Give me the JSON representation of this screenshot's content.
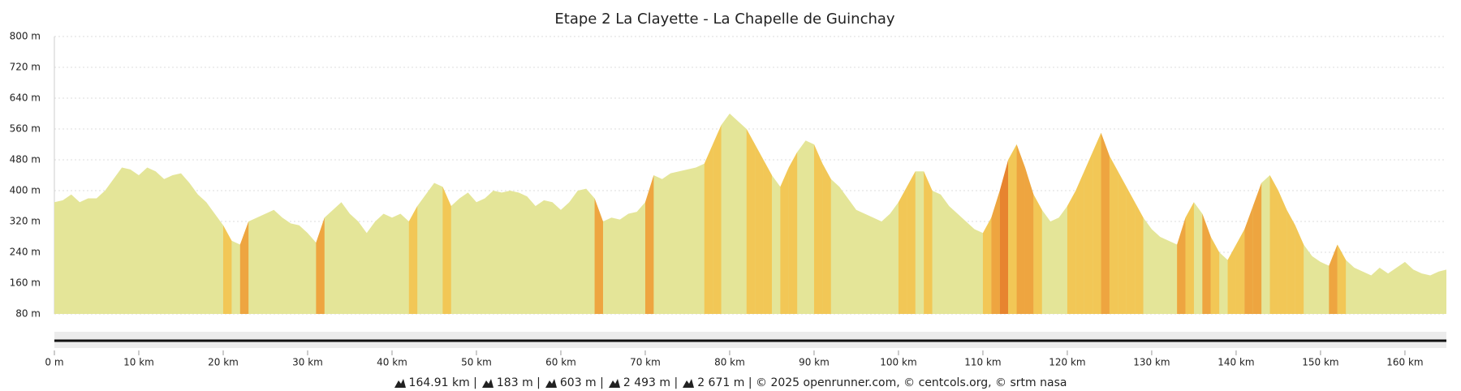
{
  "chart_data": {
    "type": "area",
    "title": "Etape 2 La Clayette - La Chapelle de Guinchay",
    "x": [
      0,
      1,
      2,
      3,
      4,
      5,
      6,
      7,
      8,
      9,
      10,
      11,
      12,
      13,
      14,
      15,
      16,
      17,
      18,
      19,
      20,
      21,
      22,
      23,
      24,
      25,
      26,
      27,
      28,
      29,
      30,
      31,
      32,
      33,
      34,
      35,
      36,
      37,
      38,
      39,
      40,
      41,
      42,
      43,
      44,
      45,
      46,
      47,
      48,
      49,
      50,
      51,
      52,
      53,
      54,
      55,
      56,
      57,
      58,
      59,
      60,
      61,
      62,
      63,
      64,
      65,
      66,
      67,
      68,
      69,
      70,
      71,
      72,
      73,
      74,
      75,
      76,
      77,
      78,
      79,
      80,
      81,
      82,
      83,
      84,
      85,
      86,
      87,
      88,
      89,
      90,
      91,
      92,
      93,
      94,
      95,
      96,
      97,
      98,
      99,
      100,
      101,
      102,
      103,
      104,
      105,
      106,
      107,
      108,
      109,
      110,
      111,
      112,
      113,
      114,
      115,
      116,
      117,
      118,
      119,
      120,
      121,
      122,
      123,
      124,
      125,
      126,
      127,
      128,
      129,
      130,
      131,
      132,
      133,
      134,
      135,
      136,
      137,
      138,
      139,
      140,
      141,
      142,
      143,
      144,
      145,
      146,
      147,
      148,
      149,
      150,
      151,
      152,
      153,
      154,
      155,
      156,
      157,
      158,
      159,
      160,
      161,
      162,
      163,
      164,
      164.91
    ],
    "series": [
      {
        "color": "#e4e598",
        "values": [
          370,
          375,
          390,
          370,
          380,
          380,
          400,
          430,
          460,
          455,
          440,
          460,
          450,
          430,
          440,
          445,
          420,
          390,
          370,
          340,
          310,
          270,
          260,
          320,
          330,
          340,
          350,
          330,
          315,
          310,
          290,
          265,
          330,
          350,
          370,
          340,
          320,
          290,
          320,
          340,
          330,
          340,
          320,
          360,
          390,
          420,
          410,
          360,
          380,
          395,
          370,
          380,
          400,
          395,
          400,
          395,
          385,
          360,
          375,
          370,
          350,
          370,
          400,
          405,
          380,
          320,
          330,
          325,
          340,
          345,
          370,
          440,
          430,
          445,
          450,
          455,
          460,
          470,
          520,
          570,
          600,
          580,
          560,
          520,
          480,
          440,
          410,
          460,
          500,
          530,
          520,
          470,
          430,
          410,
          380,
          350,
          340,
          330,
          320,
          340,
          370,
          410,
          450,
          450,
          400,
          390,
          360,
          340,
          320,
          300,
          290,
          330,
          400,
          480,
          520,
          460,
          390,
          350,
          320,
          330,
          360,
          400,
          450,
          500,
          550,
          490,
          450,
          410,
          370,
          330,
          300,
          280,
          270,
          260,
          330,
          370,
          340,
          280,
          240,
          220,
          260,
          300,
          360,
          420,
          440,
          400,
          350,
          310,
          260,
          230,
          215,
          205,
          260,
          220,
          200,
          190,
          180,
          200,
          185,
          200,
          215,
          195,
          185,
          180,
          190,
          195
        ]
      }
    ],
    "xlim": [
      0,
      164.91
    ],
    "ylim": [
      80,
      800
    ],
    "yticks": [
      {
        "value": 80,
        "label": "80 m"
      },
      {
        "value": 160,
        "label": "160 m"
      },
      {
        "value": 240,
        "label": "240 m"
      },
      {
        "value": 320,
        "label": "320 m"
      },
      {
        "value": 400,
        "label": "400 m"
      },
      {
        "value": 480,
        "label": "480 m"
      },
      {
        "value": 560,
        "label": "560 m"
      },
      {
        "value": 640,
        "label": "640 m"
      },
      {
        "value": 720,
        "label": "720 m"
      },
      {
        "value": 800,
        "label": "800 m"
      }
    ],
    "xticks": [
      {
        "value": 0,
        "label": "0 m"
      },
      {
        "value": 10,
        "label": "10 km"
      },
      {
        "value": 20,
        "label": "20 km"
      },
      {
        "value": 30,
        "label": "30 km"
      },
      {
        "value": 40,
        "label": "40 km"
      },
      {
        "value": 50,
        "label": "50 km"
      },
      {
        "value": 60,
        "label": "60 km"
      },
      {
        "value": 70,
        "label": "70 km"
      },
      {
        "value": 80,
        "label": "80 km"
      },
      {
        "value": 90,
        "label": "90 km"
      },
      {
        "value": 100,
        "label": "100 km"
      },
      {
        "value": 110,
        "label": "110 km"
      },
      {
        "value": 120,
        "label": "120 km"
      },
      {
        "value": 130,
        "label": "130 km"
      },
      {
        "value": 140,
        "label": "140 km"
      },
      {
        "value": 150,
        "label": "150 km"
      },
      {
        "value": 160,
        "label": "160 km"
      }
    ],
    "grid": true,
    "footer": [
      "164.91 km |",
      "183 m |",
      "603 m |",
      "2 493 m |",
      "2 671 m | © 2025 openrunner.com, © centcols.org, © srtm nasa"
    ]
  }
}
